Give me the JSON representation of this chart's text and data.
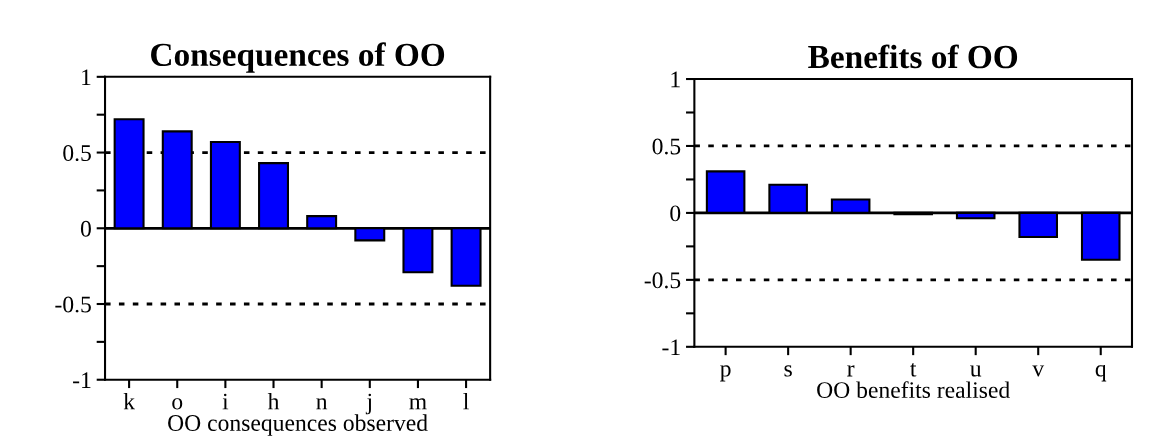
{
  "chart_data": [
    {
      "type": "bar",
      "title": "Consequences of OO",
      "xlabel": "OO consequences observed",
      "categories": [
        "k",
        "o",
        "i",
        "h",
        "n",
        "j",
        "m",
        "l"
      ],
      "values": [
        0.72,
        0.64,
        0.57,
        0.43,
        0.08,
        -0.08,
        -0.29,
        -0.38
      ],
      "color": "#0000ff",
      "ylim": [
        -1,
        1
      ],
      "yticks": [
        -1,
        {
          "value": -0.75,
          "label": null
        },
        -0.5,
        {
          "value": -0.25,
          "label": null
        },
        0,
        {
          "value": 0.25,
          "label": null
        },
        0.5,
        {
          "value": 0.75,
          "label": null
        },
        1
      ],
      "ref_lines": [
        {
          "axis": "y",
          "value": 0.5,
          "line_style": "dotted"
        },
        {
          "axis": "y",
          "value": -0.5,
          "line_style": "dotted"
        },
        {
          "axis": "y",
          "value": 0,
          "line_style": "solid"
        }
      ],
      "grid": false
    },
    {
      "type": "bar",
      "title": "Benefits of OO",
      "xlabel": "OO benefits realised",
      "categories": [
        "p",
        "s",
        "r",
        "t",
        "u",
        "v",
        "q"
      ],
      "values": [
        0.31,
        0.21,
        0.1,
        -0.01,
        -0.04,
        -0.18,
        -0.35
      ],
      "color": "#0000ff",
      "ylim": [
        -1,
        1
      ],
      "yticks": [
        -1,
        {
          "value": -0.75,
          "label": null
        },
        -0.5,
        {
          "value": -0.25,
          "label": null
        },
        0,
        {
          "value": 0.25,
          "label": null
        },
        0.5,
        {
          "value": 0.75,
          "label": null
        },
        1
      ],
      "ref_lines": [
        {
          "axis": "y",
          "value": 0.5,
          "line_style": "dotted"
        },
        {
          "axis": "y",
          "value": -0.5,
          "line_style": "dotted"
        },
        {
          "axis": "y",
          "value": 0,
          "line_style": "solid"
        }
      ],
      "grid": false
    }
  ]
}
